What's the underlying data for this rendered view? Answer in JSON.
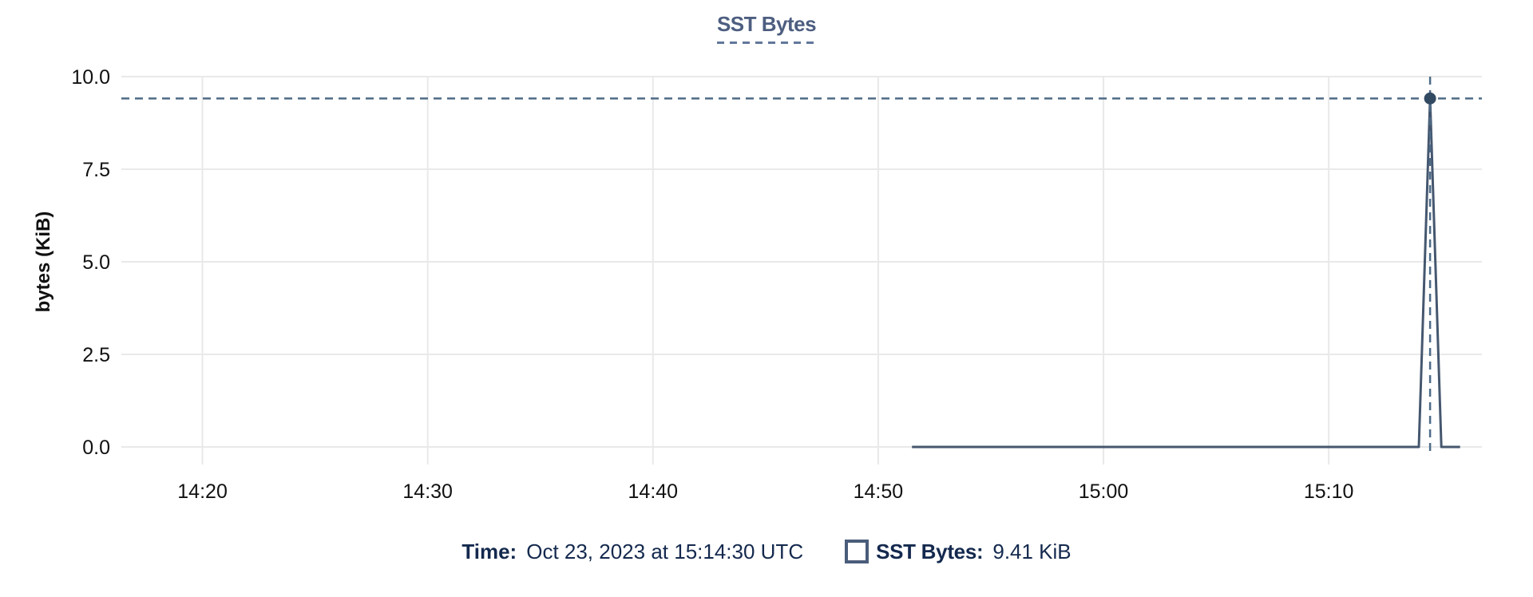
{
  "chart": {
    "title": "SST Bytes"
  },
  "chart_data": {
    "type": "line",
    "title": "SST Bytes",
    "xlabel": "",
    "ylabel": "bytes (KiB)",
    "ylim": [
      0,
      10
    ],
    "yticks": [
      0,
      2.5,
      5,
      7.5,
      10
    ],
    "ytick_labels": [
      "0.0",
      "2.5",
      "5.0",
      "7.5",
      "10.0"
    ],
    "xtick_labels": [
      "14:20",
      "14:30",
      "14:40",
      "14:50",
      "15:00",
      "15:10"
    ],
    "xlim": [
      "14:16:24",
      "15:16:48"
    ],
    "grid": true,
    "legend_position": "bottom",
    "series": [
      {
        "name": "SST Bytes",
        "points": [
          {
            "t": "14:51:30",
            "v": 0
          },
          {
            "t": "15:13:30",
            "v": 0
          },
          {
            "t": "15:14:00",
            "v": 0
          },
          {
            "t": "15:14:30",
            "v": 9.41
          },
          {
            "t": "15:15:00",
            "v": 0
          },
          {
            "t": "15:15:50",
            "v": 0
          }
        ]
      }
    ],
    "crosshair": {
      "t": "15:14:30",
      "v": 9.41
    },
    "hover_point": {
      "t": "15:14:30",
      "v": 9.41
    }
  },
  "tooltip": {
    "time_label": "Time:",
    "time_value": "Oct 23, 2023 at 15:14:30 UTC",
    "series_label": "SST Bytes:",
    "series_value": "9.41 KiB"
  },
  "colors": {
    "title": "#4d5e80",
    "title_underline": "#62789b",
    "legend_text": "#14294e",
    "swatch_border": "#4a5d7a",
    "series_line": "#45576f",
    "crosshair": "#4e6b87",
    "hover_dot": "#334a63",
    "gridline": "#e9e9e9",
    "tick_label": "#111111"
  }
}
